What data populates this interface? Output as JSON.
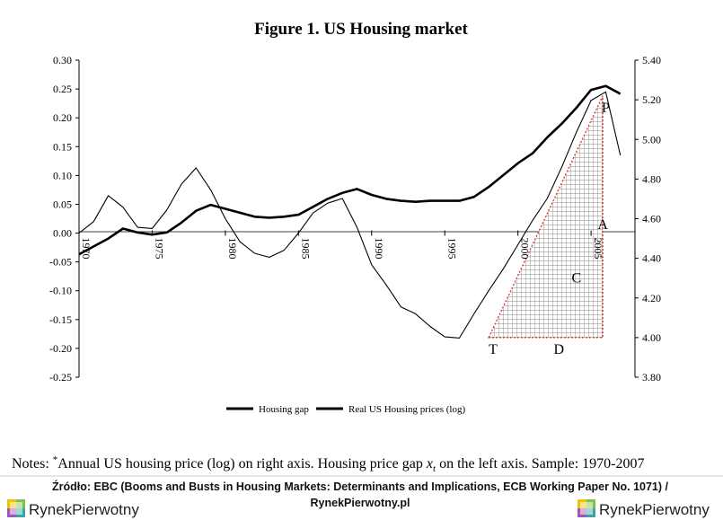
{
  "chart_data": {
    "type": "line",
    "title": "Figure 1. US Housing market",
    "x_ticks": [
      "1970",
      "1975",
      "1980",
      "1985",
      "1990",
      "1995",
      "2000",
      "2005"
    ],
    "y_left_ticks": [
      "0.30",
      "0.25",
      "0.20",
      "0.15",
      "0.10",
      "0.05",
      "0.00",
      "-0.05",
      "-0.10",
      "-0.15",
      "-0.20",
      "-0.25"
    ],
    "y_right_ticks": [
      "5.40",
      "5.20",
      "5.00",
      "4.80",
      "4.60",
      "4.40",
      "4.20",
      "4.00",
      "3.80"
    ],
    "ylim_left": [
      -0.25,
      0.3
    ],
    "ylim_right": [
      3.8,
      5.4
    ],
    "xlim": [
      1970,
      2008
    ],
    "grid": false,
    "series": [
      {
        "name": "Housing gap",
        "axis": "left",
        "x": [
          1970,
          1971,
          1972,
          1973,
          1974,
          1975,
          1976,
          1977,
          1978,
          1979,
          1980,
          1981,
          1982,
          1983,
          1984,
          1985,
          1986,
          1987,
          1988,
          1989,
          1990,
          1991,
          1992,
          1993,
          1994,
          1995,
          1996,
          1997,
          1998,
          1999,
          2000,
          2001,
          2002,
          2003,
          2004,
          2005,
          2006,
          2007
        ],
        "values": [
          0.0,
          0.02,
          0.065,
          0.045,
          0.01,
          0.008,
          0.04,
          0.085,
          0.113,
          0.075,
          0.025,
          -0.015,
          -0.035,
          -0.042,
          -0.03,
          0.0,
          0.035,
          0.052,
          0.06,
          0.01,
          -0.055,
          -0.09,
          -0.128,
          -0.14,
          -0.162,
          -0.18,
          -0.182,
          -0.14,
          -0.1,
          -0.062,
          -0.02,
          0.022,
          0.06,
          0.115,
          0.175,
          0.23,
          0.245,
          0.135
        ]
      },
      {
        "name": "Real US Housing prices (log)",
        "axis": "right",
        "x": [
          1970,
          1971,
          1972,
          1973,
          1974,
          1975,
          1976,
          1977,
          1978,
          1979,
          1980,
          1981,
          1982,
          1983,
          1984,
          1985,
          1986,
          1987,
          1988,
          1989,
          1990,
          1991,
          1992,
          1993,
          1994,
          1995,
          1996,
          1997,
          1998,
          1999,
          2000,
          2001,
          2002,
          2003,
          2004,
          2005,
          2006,
          2007
        ],
        "values": [
          4.42,
          4.46,
          4.5,
          4.55,
          4.53,
          4.52,
          4.53,
          4.58,
          4.64,
          4.67,
          4.65,
          4.63,
          4.61,
          4.605,
          4.61,
          4.62,
          4.66,
          4.7,
          4.73,
          4.75,
          4.72,
          4.7,
          4.69,
          4.685,
          4.69,
          4.69,
          4.69,
          4.71,
          4.76,
          4.82,
          4.88,
          4.93,
          5.01,
          5.08,
          5.16,
          5.25,
          5.27,
          5.23
        ]
      }
    ],
    "annotations": [
      {
        "label": "P",
        "x": 2006.0,
        "y_right": 5.16
      },
      {
        "label": "A",
        "x": 2005.8,
        "y_right": 4.57
      },
      {
        "label": "C",
        "x": 2004.0,
        "y_right": 4.3
      },
      {
        "label": "T",
        "x": 1998.3,
        "y_right": 3.94
      },
      {
        "label": "D",
        "x": 2002.8,
        "y_right": 3.94
      }
    ],
    "shaded_region": {
      "points_x": [
        1998.0,
        2005.8,
        2005.8
      ],
      "points_y_right": [
        4.0,
        5.22,
        4.0
      ]
    },
    "legend_position": "bottom-center"
  },
  "notes": {
    "prefix": "Notes: ",
    "star": "*",
    "text_a": "Annual US housing price (log) on right axis. Housing price gap ",
    "var": "x",
    "sub": "t",
    "text_b": "  on the left axis. Sample: 1970-2007"
  },
  "source": {
    "line1": "Źródło: EBC (Booms and Busts in Housing Markets: Determinants and Implications, ECB Working Paper No. 1071) /",
    "line2": "RynekPierwotny.pl"
  },
  "brand": {
    "name": "RynekPierwotny",
    "left_icon": "rynekpierwotny-logo-icon",
    "right_icon": "rynekpierwotny-logo-icon",
    "colors": {
      "yellow": "#f2c200",
      "green": "#7cc14b",
      "purple": "#9b59b6",
      "teal": "#3aa6a0"
    }
  }
}
